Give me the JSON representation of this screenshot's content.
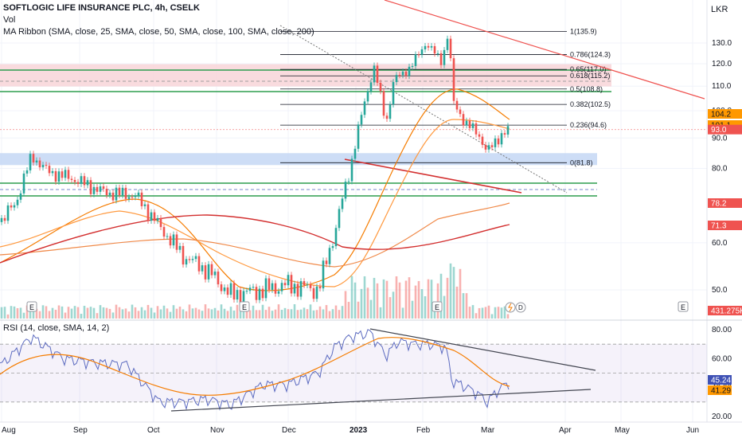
{
  "header": {
    "symbol_line": "SOFTLOGIC LIFE INSURANCE PLC, 4h, CSELK",
    "volume_label": "Vol",
    "ma_ribbon_label": "MA Ribbon (SMA, close, 25, SMA, close, 50, SMA, close, 100, SMA, close, 200)",
    "currency": "LKR"
  },
  "rsi_legend": "RSI (14, close, SMA, 14, 2)",
  "colors": {
    "up": "#26a69a",
    "down": "#ef5350",
    "fib_red_zone": "#f7d2d6",
    "fib_blue_zone": "#c8d9f5",
    "green_line": "#2e9e4f",
    "ma25": "#f57c00",
    "ma50": "#ff9a40",
    "ma100": "#f08a4a",
    "ma200": "#d32f2f",
    "rsi_line": "#5c6bc0",
    "rsi_ma": "#f57c00"
  },
  "chart_data": {
    "type": "candlestick",
    "price_axis": {
      "ticks": [
        "130.0",
        "120.0",
        "110.0",
        "100.0",
        "90.0",
        "80.0",
        "60.0",
        "50.0"
      ],
      "scale": "log",
      "badges": [
        {
          "text": "104.2",
          "bg": "#ff9800",
          "fg": "#131722"
        },
        {
          "text": "101.1",
          "bg": "#ff9800",
          "fg": "#131722"
        },
        {
          "text": "93.0",
          "bg": "#ef5350",
          "fg": "#ffffff"
        },
        {
          "text": "78.2",
          "bg": "#ef5350",
          "fg": "#ffffff"
        },
        {
          "text": "71.3",
          "bg": "#ef5350",
          "fg": "#ffffff"
        },
        {
          "text": "431.275K",
          "bg": "#ef5350",
          "fg": "#ffffff"
        }
      ]
    },
    "time_axis": [
      "Aug",
      "Sep",
      "Oct",
      "Nov",
      "Dec",
      "2023",
      "Feb",
      "Mar",
      "Apr",
      "May",
      "Jun"
    ],
    "fib_levels": [
      {
        "label": "1(135.9)",
        "value": 135.9
      },
      {
        "label": "0.786(124.3)",
        "value": 124.3
      },
      {
        "label": "0.65(117.0)",
        "value": 117.0
      },
      {
        "label": "0.618(115.2)",
        "value": 115.2
      },
      {
        "label": "0.5(108.8)",
        "value": 108.8
      },
      {
        "label": "0.382(102.5)",
        "value": 102.5
      },
      {
        "label": "0.236(94.6)",
        "value": 94.6
      },
      {
        "label": "0(81.8)",
        "value": 81.8
      }
    ],
    "rsi_axis": {
      "ticks": [
        "80.00",
        "60.00",
        "40.00",
        "20.00"
      ],
      "range": [
        20,
        80
      ],
      "badges": [
        {
          "text": "45.24",
          "bg": "#3f51b5",
          "fg": "#ffffff"
        },
        {
          "text": "41.29",
          "bg": "#ff9800",
          "fg": "#131722"
        }
      ]
    },
    "event_markers": [
      "E",
      "E",
      "E",
      "E"
    ],
    "series": [
      {
        "name": "MA 25",
        "last": 104.2
      },
      {
        "name": "MA 50",
        "last": 101.1
      },
      {
        "name": "MA 100",
        "last": 78.2
      },
      {
        "name": "MA 200",
        "last": 71.3
      }
    ],
    "last_price": 93.0,
    "last_volume": "431.275K",
    "rsi_last": 45.24,
    "rsi_ma_last": 41.29
  }
}
